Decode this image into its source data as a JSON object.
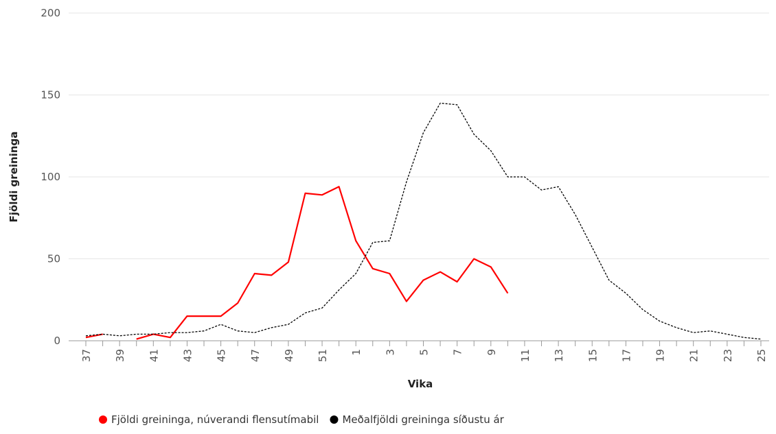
{
  "chart_data": {
    "type": "line",
    "x_label": "Vika",
    "y_label": "Fjöldi greininga",
    "categories": [
      "37",
      null,
      "39",
      null,
      "41",
      null,
      "43",
      null,
      "45",
      null,
      "47",
      null,
      "49",
      null,
      "51",
      null,
      "1",
      null,
      "3",
      null,
      "5",
      null,
      "7",
      null,
      "9",
      null,
      "11",
      null,
      "13",
      null,
      "15",
      null,
      "17",
      null,
      "19",
      null,
      "21",
      null,
      "23",
      null,
      "25"
    ],
    "series": [
      {
        "name": "Fjöldi greininga, núverandi flensutímabil",
        "color": "#ff0000",
        "dash": false,
        "values": [
          2,
          4,
          null,
          1,
          4,
          2,
          15,
          15,
          15,
          23,
          41,
          40,
          48,
          90,
          89,
          94,
          61,
          44,
          41,
          24,
          37,
          42,
          36,
          50,
          45,
          29,
          null,
          null,
          null,
          null,
          null,
          null,
          null,
          null,
          null,
          null,
          null,
          null,
          null,
          null,
          null
        ]
      },
      {
        "name": "Meðalfjöldi greininga síðustu ár",
        "color": "#000000",
        "dash": true,
        "values": [
          3,
          4,
          3,
          4,
          4,
          5,
          5,
          6,
          10,
          6,
          5,
          8,
          10,
          17,
          20,
          31,
          41,
          60,
          61,
          97,
          127,
          145,
          144,
          126,
          116,
          100,
          100,
          92,
          94,
          77,
          57,
          37,
          29,
          19,
          12,
          8,
          5,
          6,
          4,
          2,
          1
        ]
      }
    ],
    "ylim": [
      0,
      200
    ],
    "yticks": [
      0,
      50,
      100,
      150,
      200
    ],
    "grid": true,
    "legend": "bottom"
  }
}
